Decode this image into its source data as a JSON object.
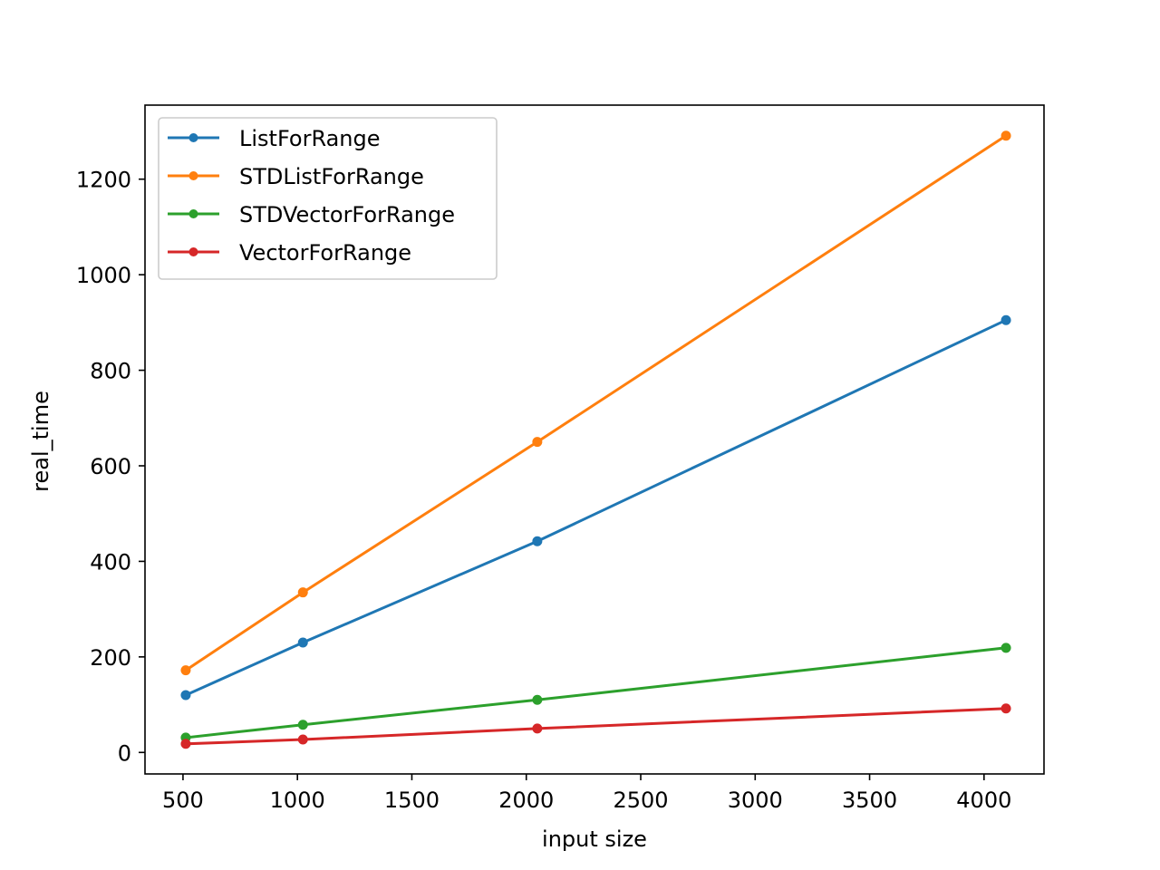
{
  "chart_data": {
    "type": "line",
    "title": "",
    "xlabel": "input size",
    "ylabel": "real_time",
    "xlim": [
      334,
      4262
    ],
    "ylim": [
      -45,
      1355
    ],
    "xticks": [
      500,
      1000,
      1500,
      2000,
      2500,
      3000,
      3500,
      4000
    ],
    "yticks": [
      0,
      200,
      400,
      600,
      800,
      1000,
      1200
    ],
    "grid": false,
    "legend": "top-left",
    "x": [
      512,
      1024,
      2048,
      4096
    ],
    "series": [
      {
        "name": "ListForRange",
        "color": "#1f77b4",
        "marker": "circle",
        "values": [
          120,
          230,
          442,
          905
        ]
      },
      {
        "name": "STDListForRange",
        "color": "#ff7f0e",
        "marker": "circle",
        "values": [
          172,
          335,
          650,
          1291
        ]
      },
      {
        "name": "STDVectorForRange",
        "color": "#2ca02c",
        "marker": "circle",
        "values": [
          31,
          58,
          110,
          219
        ]
      },
      {
        "name": "VectorForRange",
        "color": "#d62728",
        "marker": "circle",
        "values": [
          18,
          27,
          50,
          92
        ]
      }
    ]
  }
}
